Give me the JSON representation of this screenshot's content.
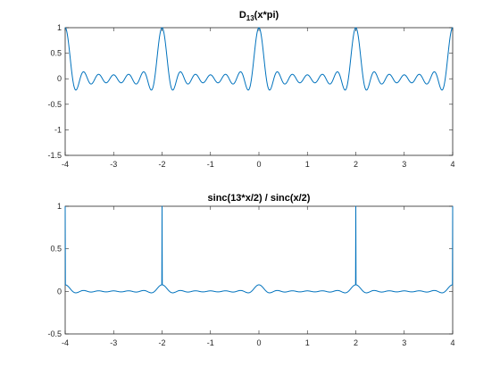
{
  "chart_data": [
    {
      "type": "line",
      "title": "D",
      "title_subscript": "13",
      "title_suffix": "(x*pi)",
      "xlabel": "",
      "ylabel": "",
      "xlim": [
        -4,
        4
      ],
      "ylim": [
        -1.5,
        1
      ],
      "xticks": [
        -4,
        -3,
        -2,
        -1,
        0,
        1,
        2,
        3,
        4
      ],
      "xtick_labels": [
        "-4",
        "-3",
        "-2",
        "-1",
        "0",
        "1",
        "2",
        "3",
        "4"
      ],
      "yticks": [
        -1.5,
        -1,
        -0.5,
        0,
        0.5,
        1
      ],
      "ytick_labels": [
        "-1.5",
        "-1",
        "-0.5",
        "0",
        "0.5",
        "1"
      ],
      "grid": false,
      "series": [
        {
          "function": "normalized Dirichlet kernel of order 13: sin(13*pi*x/2) / (13*sin(pi*x/2))",
          "n": 13,
          "x_range": [
            -4,
            4
          ],
          "color": "#0072bd"
        }
      ]
    },
    {
      "type": "line",
      "title": "sinc(13*x/2) / sinc(x/2)",
      "xlabel": "",
      "ylabel": "",
      "xlim": [
        -4,
        4
      ],
      "ylim": [
        -0.5,
        1
      ],
      "xticks": [
        -4,
        -3,
        -2,
        -1,
        0,
        1,
        2,
        3,
        4
      ],
      "xtick_labels": [
        "-4",
        "-3",
        "-2",
        "-1",
        "0",
        "1",
        "2",
        "3",
        "4"
      ],
      "yticks": [
        -0.5,
        0,
        0.5,
        1
      ],
      "ytick_labels": [
        "-0.5",
        "0",
        "0.5",
        "1"
      ],
      "grid": false,
      "series": [
        {
          "function": "sinc(13*x/2) / sinc(x/2) / 13 with sinc(t) = sin(pi*t)/(pi*t)",
          "n": 13,
          "x_range": [
            -4,
            4
          ],
          "color": "#0072bd"
        }
      ]
    }
  ]
}
